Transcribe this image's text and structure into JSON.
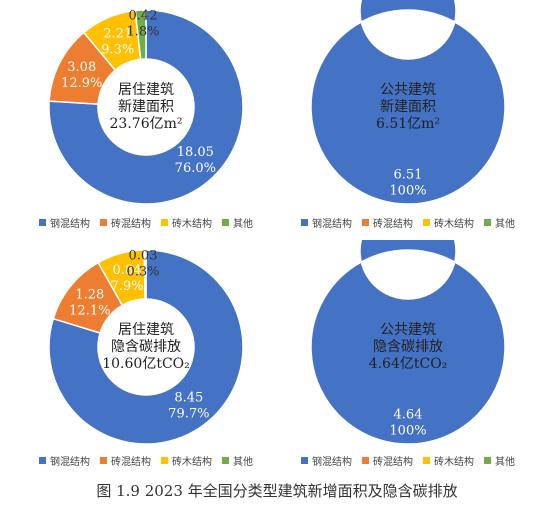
{
  "caption": "图 1.9 2023 年全国分类型建筑新增面积及隐含碳排放",
  "legend_labels": [
    "钢混结构",
    "砖混结构",
    "砖木结构",
    "其他"
  ],
  "colors": [
    "#4472c4",
    "#ed7d31",
    "#ffc000",
    "#70ad47"
  ],
  "chart_data": [
    {
      "type": "pie",
      "center_lines": [
        "居住建筑",
        "新建面积",
        "23.76亿m²"
      ],
      "categories": [
        "钢混结构",
        "砖混结构",
        "砖木结构",
        "其他"
      ],
      "values": [
        18.05,
        3.08,
        2.21,
        0.42
      ],
      "percent_labels": [
        "76.0%",
        "12.9%",
        "9.3%",
        "1.8%"
      ],
      "value_labels": [
        "18.05",
        "3.08",
        "2.21",
        "0.42"
      ]
    },
    {
      "type": "pie",
      "center_lines": [
        "公共建筑",
        "新建面积",
        "6.51亿m²"
      ],
      "categories": [
        "钢混结构",
        "砖混结构",
        "砖木结构",
        "其他"
      ],
      "values": [
        6.51,
        0,
        0,
        0
      ],
      "percent_labels": [
        "100%",
        "",
        "",
        ""
      ],
      "value_labels": [
        "6.51",
        "",
        "",
        ""
      ]
    },
    {
      "type": "pie",
      "center_lines": [
        "居住建筑",
        "隐含碳排放",
        "10.60亿tCO₂"
      ],
      "categories": [
        "钢混结构",
        "砖混结构",
        "砖木结构",
        "其他"
      ],
      "values": [
        8.45,
        1.28,
        0.84,
        0.03
      ],
      "percent_labels": [
        "79.7%",
        "12.1%",
        "7.9%",
        "0.3%"
      ],
      "value_labels": [
        "8.45",
        "1.28",
        "0.84",
        "0.03"
      ]
    },
    {
      "type": "pie",
      "center_lines": [
        "公共建筑",
        "隐含碳排放",
        "4.64亿tCO₂"
      ],
      "categories": [
        "钢混结构",
        "砖混结构",
        "砖木结构",
        "其他"
      ],
      "values": [
        4.64,
        0,
        0,
        0
      ],
      "percent_labels": [
        "100%",
        "",
        "",
        ""
      ],
      "value_labels": [
        "4.64",
        "",
        "",
        ""
      ]
    }
  ]
}
